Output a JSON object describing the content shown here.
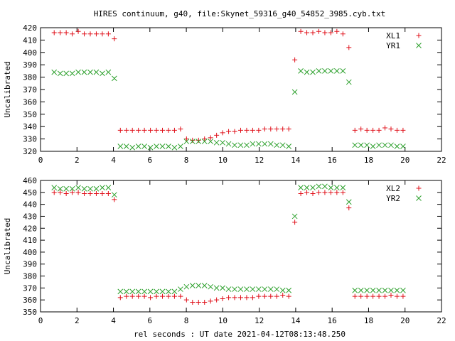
{
  "title": "HIRES continuum, g40, file:Skynet_59316_g40_54852_3985.cyb.txt",
  "xlabel": "rel seconds : UT date 2021-04-12T08:13:48.250",
  "colors": {
    "series_plus": "#e0101a",
    "series_x": "#2ca02c"
  },
  "chart_data": [
    {
      "type": "scatter",
      "ylabel": "Uncalibrated",
      "xlim": [
        0,
        22
      ],
      "ylim": [
        320,
        420
      ],
      "xticks": [
        0,
        2,
        4,
        6,
        8,
        10,
        12,
        14,
        16,
        18,
        20,
        22
      ],
      "yticks": [
        320,
        330,
        340,
        350,
        360,
        370,
        380,
        390,
        400,
        410,
        420
      ],
      "legend_position": "top-right",
      "series": [
        {
          "name": "XL1",
          "marker": "plus",
          "x": [
            0.75,
            1.08,
            1.41,
            1.74,
            2.07,
            2.4,
            2.73,
            3.06,
            3.39,
            3.72,
            4.05,
            4.38,
            4.71,
            5.04,
            5.37,
            5.7,
            6.03,
            6.36,
            6.69,
            7.02,
            7.35,
            7.68,
            8.01,
            8.34,
            8.67,
            9.0,
            9.33,
            9.66,
            9.99,
            10.32,
            10.65,
            10.98,
            11.31,
            11.64,
            11.97,
            12.3,
            12.63,
            12.96,
            13.29,
            13.62,
            13.95,
            14.28,
            14.61,
            14.94,
            15.27,
            15.6,
            15.93,
            16.26,
            16.59,
            16.92,
            17.25,
            17.58,
            17.91,
            18.24,
            18.57,
            18.9,
            19.23,
            19.56,
            19.89
          ],
          "y": [
            416,
            416,
            416,
            415,
            417,
            415,
            415,
            415,
            415,
            415,
            411,
            337,
            337,
            337,
            337,
            337,
            337,
            337,
            337,
            337,
            337,
            338,
            330,
            329,
            329,
            330,
            331,
            333,
            335,
            336,
            336,
            337,
            337,
            337,
            337,
            338,
            338,
            338,
            338,
            338,
            394,
            417,
            416,
            416,
            417,
            416,
            416,
            417,
            415,
            404,
            337,
            338,
            337,
            337,
            337,
            339,
            338,
            337,
            337
          ]
        },
        {
          "name": "YR1",
          "marker": "x",
          "x": [
            0.75,
            1.08,
            1.41,
            1.74,
            2.07,
            2.4,
            2.73,
            3.06,
            3.39,
            3.72,
            4.05,
            4.38,
            4.71,
            5.04,
            5.37,
            5.7,
            6.03,
            6.36,
            6.69,
            7.02,
            7.35,
            7.68,
            8.01,
            8.34,
            8.67,
            9.0,
            9.33,
            9.66,
            9.99,
            10.32,
            10.65,
            10.98,
            11.31,
            11.64,
            11.97,
            12.3,
            12.63,
            12.96,
            13.29,
            13.62,
            13.95,
            14.28,
            14.61,
            14.94,
            15.27,
            15.6,
            15.93,
            16.26,
            16.59,
            16.92,
            17.25,
            17.58,
            17.91,
            18.24,
            18.57,
            18.9,
            19.23,
            19.56,
            19.89
          ],
          "y": [
            384,
            383,
            383,
            383,
            384,
            384,
            384,
            384,
            383,
            384,
            379,
            324,
            324,
            323,
            324,
            324,
            323,
            324,
            324,
            324,
            323,
            324,
            328,
            328,
            328,
            328,
            328,
            327,
            327,
            326,
            325,
            325,
            325,
            326,
            326,
            326,
            326,
            325,
            325,
            324,
            368,
            385,
            384,
            384,
            385,
            385,
            385,
            385,
            385,
            376,
            325,
            325,
            325,
            324,
            325,
            325,
            325,
            324,
            324
          ]
        }
      ]
    },
    {
      "type": "scatter",
      "ylabel": "Uncalibrated",
      "xlim": [
        0,
        22
      ],
      "ylim": [
        350,
        460
      ],
      "xticks": [
        0,
        2,
        4,
        6,
        8,
        10,
        12,
        14,
        16,
        18,
        20,
        22
      ],
      "yticks": [
        350,
        360,
        370,
        380,
        390,
        400,
        410,
        420,
        430,
        440,
        450,
        460
      ],
      "legend_position": "top-right",
      "series": [
        {
          "name": "XL2",
          "marker": "plus",
          "x": [
            0.75,
            1.08,
            1.41,
            1.74,
            2.07,
            2.4,
            2.73,
            3.06,
            3.39,
            3.72,
            4.05,
            4.38,
            4.71,
            5.04,
            5.37,
            5.7,
            6.03,
            6.36,
            6.69,
            7.02,
            7.35,
            7.68,
            8.01,
            8.34,
            8.67,
            9.0,
            9.33,
            9.66,
            9.99,
            10.32,
            10.65,
            10.98,
            11.31,
            11.64,
            11.97,
            12.3,
            12.63,
            12.96,
            13.29,
            13.62,
            13.95,
            14.28,
            14.61,
            14.94,
            15.27,
            15.6,
            15.93,
            16.26,
            16.59,
            16.92,
            17.25,
            17.58,
            17.91,
            18.24,
            18.57,
            18.9,
            19.23,
            19.56,
            19.89
          ],
          "y": [
            450,
            450,
            449,
            450,
            450,
            449,
            449,
            449,
            449,
            449,
            444,
            362,
            363,
            363,
            363,
            363,
            362,
            363,
            363,
            363,
            363,
            363,
            360,
            358,
            358,
            358,
            359,
            360,
            361,
            362,
            362,
            362,
            362,
            362,
            363,
            363,
            363,
            363,
            364,
            363,
            425,
            449,
            450,
            449,
            450,
            450,
            450,
            450,
            450,
            437,
            363,
            363,
            363,
            363,
            363,
            363,
            364,
            363,
            363
          ]
        },
        {
          "name": "YR2",
          "marker": "x",
          "x": [
            0.75,
            1.08,
            1.41,
            1.74,
            2.07,
            2.4,
            2.73,
            3.06,
            3.39,
            3.72,
            4.05,
            4.38,
            4.71,
            5.04,
            5.37,
            5.7,
            6.03,
            6.36,
            6.69,
            7.02,
            7.35,
            7.68,
            8.01,
            8.34,
            8.67,
            9.0,
            9.33,
            9.66,
            9.99,
            10.32,
            10.65,
            10.98,
            11.31,
            11.64,
            11.97,
            12.3,
            12.63,
            12.96,
            13.29,
            13.62,
            13.95,
            14.28,
            14.61,
            14.94,
            15.27,
            15.6,
            15.93,
            16.26,
            16.59,
            16.92,
            17.25,
            17.58,
            17.91,
            18.24,
            18.57,
            18.9,
            19.23,
            19.56,
            19.89
          ],
          "y": [
            454,
            453,
            453,
            453,
            454,
            453,
            453,
            453,
            454,
            454,
            448,
            367,
            367,
            367,
            367,
            367,
            367,
            367,
            367,
            367,
            367,
            369,
            371,
            372,
            372,
            372,
            371,
            370,
            370,
            369,
            369,
            369,
            369,
            369,
            369,
            369,
            369,
            369,
            368,
            368,
            430,
            454,
            454,
            454,
            455,
            455,
            454,
            454,
            454,
            442,
            368,
            368,
            368,
            368,
            368,
            368,
            368,
            368,
            368
          ]
        }
      ]
    }
  ]
}
